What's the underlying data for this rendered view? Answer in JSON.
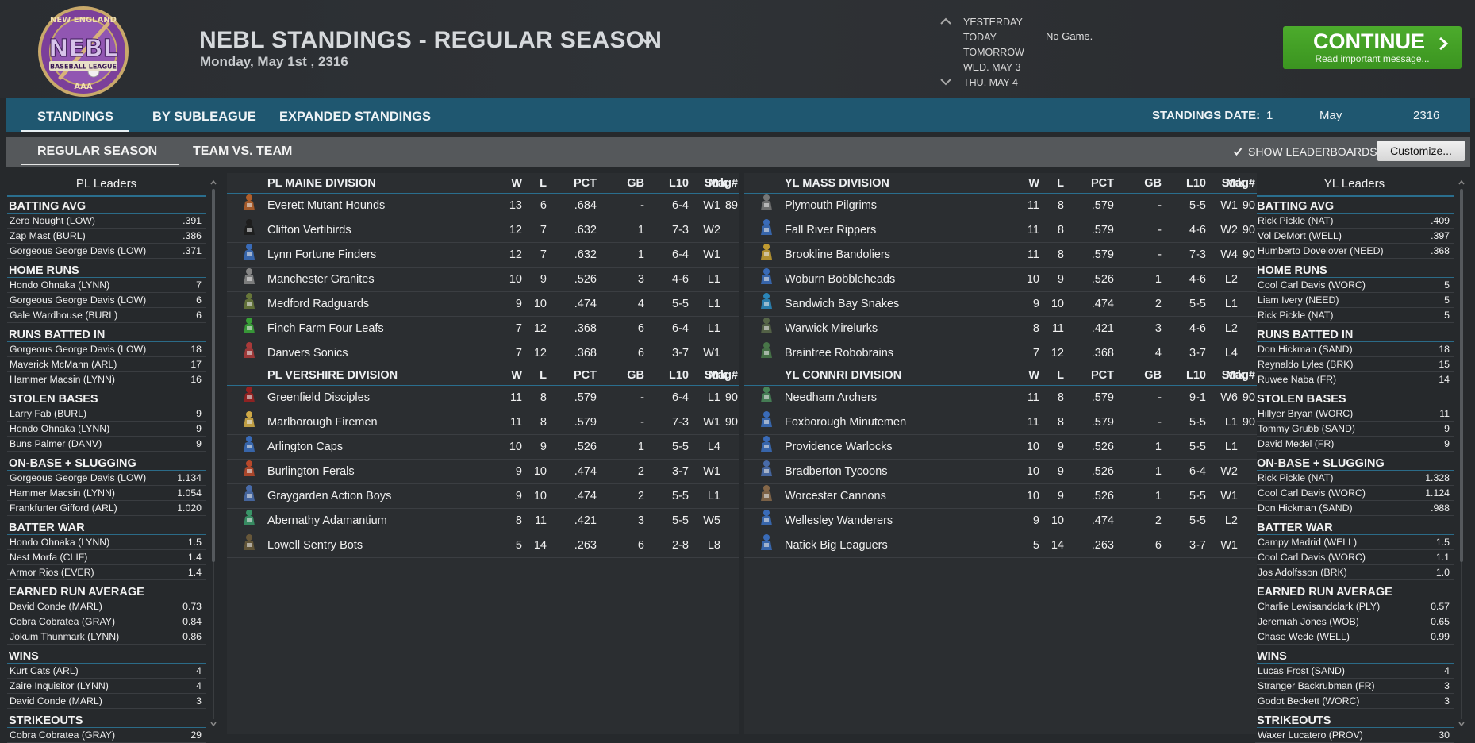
{
  "header": {
    "logo_lines": [
      "NEW ENGLAND",
      "NEBL",
      "BASEBALL LEAGUE",
      "AAA"
    ],
    "title": "NEBL STANDINGS - REGULAR SEASON",
    "date": "Monday, May 1st , 2316",
    "days": [
      "YESTERDAY",
      "TODAY",
      "TOMORROW",
      "WED. MAY 3",
      "THU. MAY 4"
    ],
    "no_game": "No Game.",
    "continue_label": "CONTINUE",
    "continue_sub": "Read important message..."
  },
  "tabs": {
    "items": [
      "STANDINGS",
      "BY SUBLEAGUE",
      "EXPANDED STANDINGS"
    ],
    "standings_date_label": "STANDINGS DATE:",
    "standings_day": "1",
    "standings_month": "May",
    "standings_year": "2316"
  },
  "subtabs": {
    "items": [
      "REGULAR SEASON",
      "TEAM VS. TEAM"
    ],
    "show_leaderboards": "SHOW LEADERBOARDS",
    "customize": "Customize..."
  },
  "columns": [
    "W",
    "L",
    "PCT",
    "GB",
    "L10",
    "Strk",
    "Mag#"
  ],
  "pl_leaders": {
    "title": "PL Leaders",
    "categories": [
      {
        "name": "BATTING AVG",
        "rows": [
          [
            "Zero Nought (LOW)",
            ".391"
          ],
          [
            "Zap Mast (BURL)",
            ".386"
          ],
          [
            "Gorgeous George Davis (LOW)",
            ".371"
          ]
        ]
      },
      {
        "name": "HOME RUNS",
        "rows": [
          [
            "Hondo Ohnaka (LYNN)",
            "7"
          ],
          [
            "Gorgeous George Davis (LOW)",
            "6"
          ],
          [
            "Gale Wardhouse (BURL)",
            "6"
          ]
        ]
      },
      {
        "name": "RUNS BATTED IN",
        "rows": [
          [
            "Gorgeous George Davis (LOW)",
            "18"
          ],
          [
            "Maverick McMann (ARL)",
            "17"
          ],
          [
            "Hammer Macsin (LYNN)",
            "16"
          ]
        ]
      },
      {
        "name": "STOLEN BASES",
        "rows": [
          [
            "Larry Fab (BURL)",
            "9"
          ],
          [
            "Hondo Ohnaka (LYNN)",
            "9"
          ],
          [
            "Buns Palmer (DANV)",
            "9"
          ]
        ]
      },
      {
        "name": "ON-BASE + SLUGGING",
        "rows": [
          [
            "Gorgeous George Davis (LOW)",
            "1.134"
          ],
          [
            "Hammer Macsin (LYNN)",
            "1.054"
          ],
          [
            "Frankfurter Gifford (ARL)",
            "1.020"
          ]
        ]
      },
      {
        "name": "BATTER WAR",
        "rows": [
          [
            "Hondo Ohnaka (LYNN)",
            "1.5"
          ],
          [
            "Nest Morfa (CLIF)",
            "1.4"
          ],
          [
            "Armor Rios (EVER)",
            "1.4"
          ]
        ]
      },
      {
        "name": "EARNED RUN AVERAGE",
        "rows": [
          [
            "David Conde (MARL)",
            "0.73"
          ],
          [
            "Cobra Cobratea (GRAY)",
            "0.84"
          ],
          [
            "Jokum Thunmark (LYNN)",
            "0.86"
          ]
        ]
      },
      {
        "name": "WINS",
        "rows": [
          [
            "Kurt Cats (ARL)",
            "4"
          ],
          [
            "Zaire Inquisitor (LYNN)",
            "4"
          ],
          [
            "David Conde (MARL)",
            "3"
          ]
        ]
      },
      {
        "name": "STRIKEOUTS",
        "rows": [
          [
            "Cobra Cobratea (GRAY)",
            "29"
          ]
        ]
      }
    ]
  },
  "yl_leaders": {
    "title": "YL Leaders",
    "categories": [
      {
        "name": "BATTING AVG",
        "rows": [
          [
            "Rick Pickle (NAT)",
            ".409"
          ],
          [
            "Vol DeMort (WELL)",
            ".397"
          ],
          [
            "Humberto Dovelover (NEED)",
            ".368"
          ]
        ]
      },
      {
        "name": "HOME RUNS",
        "rows": [
          [
            "Cool Carl Davis (WORC)",
            "5"
          ],
          [
            "Liam Ivery (NEED)",
            "5"
          ],
          [
            "Rick Pickle (NAT)",
            "5"
          ]
        ]
      },
      {
        "name": "RUNS BATTED IN",
        "rows": [
          [
            "Don Hickman (SAND)",
            "18"
          ],
          [
            "Reynaldo Lyles (BRK)",
            "15"
          ],
          [
            "Ruwee Naba (FR)",
            "14"
          ]
        ]
      },
      {
        "name": "STOLEN BASES",
        "rows": [
          [
            "Hillyer Bryan (WORC)",
            "11"
          ],
          [
            "Tommy Grubb (SAND)",
            "9"
          ],
          [
            "David Medel (FR)",
            "9"
          ]
        ]
      },
      {
        "name": "ON-BASE + SLUGGING",
        "rows": [
          [
            "Rick Pickle (NAT)",
            "1.328"
          ],
          [
            "Cool Carl Davis (WORC)",
            "1.124"
          ],
          [
            "Don Hickman (SAND)",
            ".988"
          ]
        ]
      },
      {
        "name": "BATTER WAR",
        "rows": [
          [
            "Campy Madrid (WELL)",
            "1.5"
          ],
          [
            "Cool Carl Davis (WORC)",
            "1.1"
          ],
          [
            "Jos Adolfsson (BRK)",
            "1.0"
          ]
        ]
      },
      {
        "name": "EARNED RUN AVERAGE",
        "rows": [
          [
            "Charlie Lewisandclark (PLY)",
            "0.57"
          ],
          [
            "Jeremiah Jones (WOB)",
            "0.65"
          ],
          [
            "Chase Wede (WELL)",
            "0.99"
          ]
        ]
      },
      {
        "name": "WINS",
        "rows": [
          [
            "Lucas Frost (SAND)",
            "4"
          ],
          [
            "Stranger Backrubman (FR)",
            "3"
          ],
          [
            "Godot Beckett (WORC)",
            "3"
          ]
        ]
      },
      {
        "name": "STRIKEOUTS",
        "rows": [
          [
            "Waxer Lucatero (PROV)",
            "30"
          ]
        ]
      }
    ]
  },
  "divisions": [
    {
      "name": "PL MAINE DIVISION",
      "teams": [
        {
          "name": "Everett Mutant Hounds",
          "w": "13",
          "l": "6",
          "pct": ".684",
          "gb": "-",
          "l10": "6-4",
          "strk": "W1",
          "mag": "89",
          "color": "#b8622a"
        },
        {
          "name": "Clifton Vertibirds",
          "w": "12",
          "l": "7",
          "pct": ".632",
          "gb": "1",
          "l10": "7-3",
          "strk": "W2",
          "mag": "",
          "color": "#1c1c1c"
        },
        {
          "name": "Lynn Fortune Finders",
          "w": "12",
          "l": "7",
          "pct": ".632",
          "gb": "1",
          "l10": "6-4",
          "strk": "W1",
          "mag": "",
          "color": "#3a6fc0"
        },
        {
          "name": "Manchester Granites",
          "w": "10",
          "l": "9",
          "pct": ".526",
          "gb": "3",
          "l10": "4-6",
          "strk": "L1",
          "mag": "",
          "color": "#8a8a8a"
        },
        {
          "name": "Medford Radguards",
          "w": "9",
          "l": "10",
          "pct": ".474",
          "gb": "4",
          "l10": "5-5",
          "strk": "L1",
          "mag": "",
          "color": "#6a7a3a"
        },
        {
          "name": "Finch Farm Four Leafs",
          "w": "7",
          "l": "12",
          "pct": ".368",
          "gb": "6",
          "l10": "6-4",
          "strk": "L1",
          "mag": "",
          "color": "#3aa838"
        },
        {
          "name": "Danvers Sonics",
          "w": "7",
          "l": "12",
          "pct": ".368",
          "gb": "6",
          "l10": "3-7",
          "strk": "W1",
          "mag": "",
          "color": "#b03a3a"
        }
      ]
    },
    {
      "name": "PL VERSHIRE DIVISION",
      "teams": [
        {
          "name": "Greenfield Disciples",
          "w": "11",
          "l": "8",
          "pct": ".579",
          "gb": "-",
          "l10": "6-4",
          "strk": "L1",
          "mag": "90",
          "color": "#a02020"
        },
        {
          "name": "Marlborough Firemen",
          "w": "11",
          "l": "8",
          "pct": ".579",
          "gb": "-",
          "l10": "7-3",
          "strk": "W1",
          "mag": "90",
          "color": "#d8b048"
        },
        {
          "name": "Arlington Caps",
          "w": "10",
          "l": "9",
          "pct": ".526",
          "gb": "1",
          "l10": "5-5",
          "strk": "L4",
          "mag": "",
          "color": "#3a6fc0"
        },
        {
          "name": "Burlington Ferals",
          "w": "9",
          "l": "10",
          "pct": ".474",
          "gb": "2",
          "l10": "3-7",
          "strk": "W1",
          "mag": "",
          "color": "#c04a2a"
        },
        {
          "name": "Graygarden Action Boys",
          "w": "9",
          "l": "10",
          "pct": ".474",
          "gb": "2",
          "l10": "5-5",
          "strk": "L1",
          "mag": "",
          "color": "#4a6fb0"
        },
        {
          "name": "Abernathy Adamantium",
          "w": "8",
          "l": "11",
          "pct": ".421",
          "gb": "3",
          "l10": "5-5",
          "strk": "W5",
          "mag": "",
          "color": "#3a9a6a"
        },
        {
          "name": "Lowell Sentry Bots",
          "w": "5",
          "l": "14",
          "pct": ".263",
          "gb": "6",
          "l10": "2-8",
          "strk": "L8",
          "mag": "",
          "color": "#6a5a3a"
        }
      ]
    },
    {
      "name": "YL MASS DIVISION",
      "teams": [
        {
          "name": "Plymouth Pilgrims",
          "w": "11",
          "l": "8",
          "pct": ".579",
          "gb": "-",
          "l10": "5-5",
          "strk": "W1",
          "mag": "90",
          "color": "#7a7a7a"
        },
        {
          "name": "Fall River Rippers",
          "w": "11",
          "l": "8",
          "pct": ".579",
          "gb": "-",
          "l10": "4-6",
          "strk": "W2",
          "mag": "90",
          "color": "#3a6fc0"
        },
        {
          "name": "Brookline Bandoliers",
          "w": "11",
          "l": "8",
          "pct": ".579",
          "gb": "-",
          "l10": "7-3",
          "strk": "W4",
          "mag": "90",
          "color": "#c8a030"
        },
        {
          "name": "Woburn Bobbleheads",
          "w": "10",
          "l": "9",
          "pct": ".526",
          "gb": "1",
          "l10": "4-6",
          "strk": "L2",
          "mag": "",
          "color": "#3a6fc0"
        },
        {
          "name": "Sandwich Bay Snakes",
          "w": "9",
          "l": "10",
          "pct": ".474",
          "gb": "2",
          "l10": "5-5",
          "strk": "L1",
          "mag": "",
          "color": "#2a8ac0"
        },
        {
          "name": "Warwick Mirelurks",
          "w": "8",
          "l": "11",
          "pct": ".421",
          "gb": "3",
          "l10": "4-6",
          "strk": "L2",
          "mag": "",
          "color": "#5a6a4a"
        },
        {
          "name": "Braintree Robobrains",
          "w": "7",
          "l": "12",
          "pct": ".368",
          "gb": "4",
          "l10": "3-7",
          "strk": "L4",
          "mag": "",
          "color": "#4a7a4a"
        }
      ]
    },
    {
      "name": "YL CONNRI DIVISION",
      "teams": [
        {
          "name": "Needham Archers",
          "w": "11",
          "l": "8",
          "pct": ".579",
          "gb": "-",
          "l10": "9-1",
          "strk": "W6",
          "mag": "90",
          "color": "#4a8a5a"
        },
        {
          "name": "Foxborough Minutemen",
          "w": "11",
          "l": "8",
          "pct": ".579",
          "gb": "-",
          "l10": "5-5",
          "strk": "L1",
          "mag": "90",
          "color": "#3a6fc0"
        },
        {
          "name": "Providence Warlocks",
          "w": "10",
          "l": "9",
          "pct": ".526",
          "gb": "1",
          "l10": "5-5",
          "strk": "L1",
          "mag": "",
          "color": "#3a6fc0"
        },
        {
          "name": "Bradberton Tycoons",
          "w": "10",
          "l": "9",
          "pct": ".526",
          "gb": "1",
          "l10": "6-4",
          "strk": "W2",
          "mag": "",
          "color": "#4a6fb0"
        },
        {
          "name": "Worcester Cannons",
          "w": "10",
          "l": "9",
          "pct": ".526",
          "gb": "1",
          "l10": "5-5",
          "strk": "W1",
          "mag": "",
          "color": "#8a6a4a"
        },
        {
          "name": "Wellesley Wanderers",
          "w": "9",
          "l": "10",
          "pct": ".474",
          "gb": "2",
          "l10": "5-5",
          "strk": "L2",
          "mag": "",
          "color": "#3a6fc0"
        },
        {
          "name": "Natick Big Leaguers",
          "w": "5",
          "l": "14",
          "pct": ".263",
          "gb": "6",
          "l10": "3-7",
          "strk": "W1",
          "mag": "",
          "color": "#3a6fc0"
        }
      ]
    }
  ]
}
